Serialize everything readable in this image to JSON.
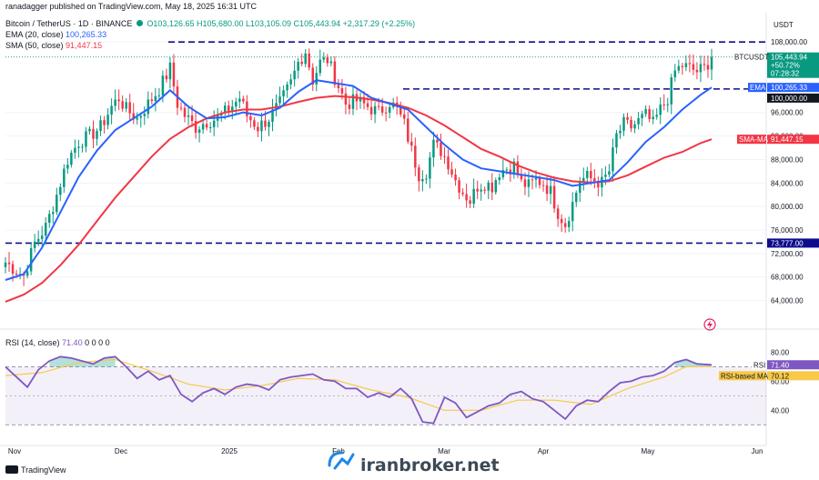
{
  "header": {
    "publisher_line": "ranadagger published on TradingView.com, May 18, 2025 16:31 UTC",
    "symbol_line": "Bitcoin / TetherUS · 1D · BINANCE",
    "ohlc": "O103,126.65 H105,680.00 L103,105.09 C105,443.94 +2,317.29 (+2.25%)",
    "ema_label": "EMA (20, close)",
    "ema_value": "100,265.33",
    "sma_label": "SMA (50, close)",
    "sma_value": "91,447.15",
    "currency": "USDT"
  },
  "colors": {
    "up": "#089981",
    "down": "#f23645",
    "ema": "#2962ff",
    "sma": "#f23645",
    "rsi": "#7e57c2",
    "rsi_ma": "#f7c948",
    "dashed": "#0d0d8c"
  },
  "price_tags": {
    "btc_symbol": "BTCUSDT",
    "btc_price": "105,443.94",
    "btc_change": "+50.72%",
    "btc_countdown": "07:28:32",
    "ema_name": "EMA",
    "ema_price": "100,265.33",
    "sma_name": "SMA-MA",
    "sma_price": "91,447.15",
    "level_100k": "100,000.00",
    "level_73k": "73,777.00"
  },
  "rsi_panel": {
    "label": "RSI (14, close)",
    "value": "71.40",
    "tail": "0 0 0 0",
    "rsi_tag": "RSI",
    "rsi_tag_value": "71.40",
    "ma_tag": "RSI-based MA",
    "ma_tag_value": "70.12"
  },
  "watermark": "iranbroker.net",
  "tv_brand": "TradingView",
  "chart_data": [
    {
      "type": "candlestick",
      "title": "Bitcoin / TetherUS · 1D · BINANCE",
      "x_labels": [
        "Nov",
        "Dec",
        "2025",
        "Feb",
        "Mar",
        "Apr",
        "May",
        "Jun"
      ],
      "y_ticks": [
        "108,000.00",
        "96,000.00",
        "92,000.00",
        "88,000.00",
        "84,000.00",
        "80,000.00",
        "76,000.00",
        "72,000.00",
        "68,000.00",
        "64,000.00"
      ],
      "ylim": [
        61000,
        110500
      ],
      "horizontal_levels": [
        108000,
        100000,
        73777
      ],
      "series": [
        {
          "name": "EMA (20, close)",
          "last": 100265.33
        },
        {
          "name": "SMA (50, close)",
          "last": 91447.15
        }
      ],
      "close_path": [
        [
          0,
          70500
        ],
        [
          5,
          68200
        ],
        [
          8,
          73800
        ],
        [
          11,
          76500
        ],
        [
          14,
          82000
        ],
        [
          17,
          88000
        ],
        [
          20,
          91000
        ],
        [
          23,
          92000
        ],
        [
          26,
          93500
        ],
        [
          29,
          97000
        ],
        [
          31,
          98500
        ],
        [
          33,
          96500
        ],
        [
          36,
          95000
        ],
        [
          39,
          97500
        ],
        [
          42,
          100000
        ],
        [
          45,
          103500
        ],
        [
          47,
          97500
        ],
        [
          49,
          95500
        ],
        [
          52,
          93500
        ],
        [
          55,
          94500
        ],
        [
          58,
          95000
        ],
        [
          61,
          96500
        ],
        [
          64,
          98500
        ],
        [
          66,
          95500
        ],
        [
          69,
          93500
        ],
        [
          72,
          95000
        ],
        [
          75,
          97500
        ],
        [
          78,
          101000
        ],
        [
          80,
          104500
        ],
        [
          82,
          106500
        ],
        [
          84,
          101500
        ],
        [
          86,
          104500
        ],
        [
          88,
          105000
        ],
        [
          90,
          102000
        ],
        [
          93,
          97500
        ],
        [
          96,
          98000
        ],
        [
          99,
          97000
        ],
        [
          102,
          96000
        ],
        [
          105,
          97800
        ],
        [
          107,
          96500
        ],
        [
          109,
          94000
        ],
        [
          111,
          89500
        ],
        [
          113,
          85500
        ],
        [
          115,
          86000
        ],
        [
          117,
          90500
        ],
        [
          119,
          89500
        ],
        [
          121,
          87500
        ],
        [
          123,
          84500
        ],
        [
          125,
          82500
        ],
        [
          127,
          81000
        ],
        [
          129,
          83500
        ],
        [
          131,
          84000
        ],
        [
          133,
          83500
        ],
        [
          135,
          86000
        ],
        [
          137,
          86500
        ],
        [
          139,
          87000
        ],
        [
          141,
          84000
        ],
        [
          143,
          83500
        ],
        [
          145,
          84500
        ],
        [
          147,
          84000
        ],
        [
          149,
          82500
        ],
        [
          151,
          79000
        ],
        [
          153,
          77000
        ],
        [
          155,
          80500
        ],
        [
          157,
          84500
        ],
        [
          159,
          85000
        ],
        [
          161,
          84500
        ],
        [
          163,
          84000
        ],
        [
          165,
          86000
        ],
        [
          167,
          92000
        ],
        [
          169,
          94000
        ],
        [
          171,
          93500
        ],
        [
          173,
          94500
        ],
        [
          175,
          95500
        ],
        [
          177,
          94000
        ],
        [
          179,
          96500
        ],
        [
          181,
          98500
        ],
        [
          183,
          103000
        ],
        [
          185,
          104000
        ],
        [
          187,
          103500
        ],
        [
          189,
          103000
        ],
        [
          191,
          103500
        ],
        [
          193,
          105444
        ]
      ],
      "ema_path": [
        [
          0,
          67500
        ],
        [
          5,
          68500
        ],
        [
          10,
          73000
        ],
        [
          15,
          79000
        ],
        [
          20,
          85000
        ],
        [
          25,
          89500
        ],
        [
          30,
          93000
        ],
        [
          35,
          95000
        ],
        [
          40,
          97000
        ],
        [
          45,
          99800
        ],
        [
          50,
          97000
        ],
        [
          55,
          95000
        ],
        [
          60,
          95200
        ],
        [
          65,
          96000
        ],
        [
          70,
          95500
        ],
        [
          75,
          96800
        ],
        [
          80,
          99500
        ],
        [
          85,
          101500
        ],
        [
          90,
          101000
        ],
        [
          95,
          100500
        ],
        [
          100,
          98500
        ],
        [
          105,
          97500
        ],
        [
          110,
          96500
        ],
        [
          115,
          93500
        ],
        [
          120,
          90500
        ],
        [
          125,
          88000
        ],
        [
          130,
          86500
        ],
        [
          135,
          86000
        ],
        [
          140,
          85500
        ],
        [
          145,
          85000
        ],
        [
          150,
          84500
        ],
        [
          155,
          83500
        ],
        [
          160,
          84000
        ],
        [
          165,
          84500
        ],
        [
          170,
          87500
        ],
        [
          175,
          91000
        ],
        [
          180,
          93500
        ],
        [
          185,
          96500
        ],
        [
          190,
          99000
        ],
        [
          193,
          100265
        ]
      ],
      "sma_path": [
        [
          0,
          63800
        ],
        [
          5,
          65000
        ],
        [
          10,
          67000
        ],
        [
          15,
          70000
        ],
        [
          20,
          73500
        ],
        [
          25,
          77500
        ],
        [
          30,
          81500
        ],
        [
          35,
          85000
        ],
        [
          40,
          88500
        ],
        [
          45,
          91500
        ],
        [
          50,
          93500
        ],
        [
          55,
          95000
        ],
        [
          60,
          96000
        ],
        [
          65,
          96500
        ],
        [
          70,
          96500
        ],
        [
          75,
          97000
        ],
        [
          80,
          97800
        ],
        [
          85,
          98500
        ],
        [
          90,
          98800
        ],
        [
          95,
          98600
        ],
        [
          100,
          98200
        ],
        [
          105,
          97600
        ],
        [
          110,
          96800
        ],
        [
          115,
          95500
        ],
        [
          120,
          93800
        ],
        [
          125,
          91800
        ],
        [
          130,
          89800
        ],
        [
          135,
          88500
        ],
        [
          140,
          87000
        ],
        [
          145,
          85800
        ],
        [
          150,
          84900
        ],
        [
          155,
          84300
        ],
        [
          160,
          84100
        ],
        [
          165,
          84300
        ],
        [
          170,
          85300
        ],
        [
          175,
          86800
        ],
        [
          180,
          88300
        ],
        [
          185,
          89300
        ],
        [
          190,
          90800
        ],
        [
          193,
          91447
        ]
      ]
    },
    {
      "type": "line",
      "title": "RSI (14, close)",
      "y_ticks": [
        "80.00",
        "60.00",
        "40.00"
      ],
      "ylim": [
        22,
        86
      ],
      "bands": [
        70,
        30
      ],
      "series": [
        {
          "name": "RSI (14, close)",
          "last": 71.4,
          "values": [
            [
              0,
              70
            ],
            [
              3,
              63
            ],
            [
              6,
              56
            ],
            [
              9,
              68
            ],
            [
              12,
              74
            ],
            [
              15,
              77
            ],
            [
              18,
              76
            ],
            [
              21,
              74
            ],
            [
              24,
              72
            ],
            [
              27,
              76
            ],
            [
              30,
              77
            ],
            [
              33,
              70
            ],
            [
              36,
              62
            ],
            [
              39,
              67
            ],
            [
              42,
              61
            ],
            [
              45,
              64
            ],
            [
              48,
              51
            ],
            [
              51,
              46
            ],
            [
              54,
              52
            ],
            [
              57,
              55
            ],
            [
              60,
              51
            ],
            [
              63,
              56
            ],
            [
              66,
              58
            ],
            [
              69,
              57
            ],
            [
              72,
              54
            ],
            [
              75,
              61
            ],
            [
              78,
              63
            ],
            [
              81,
              64
            ],
            [
              84,
              65
            ],
            [
              87,
              61
            ],
            [
              90,
              60
            ],
            [
              93,
              55
            ],
            [
              96,
              55
            ],
            [
              99,
              49
            ],
            [
              102,
              52
            ],
            [
              105,
              49
            ],
            [
              108,
              55
            ],
            [
              111,
              48
            ],
            [
              114,
              32
            ],
            [
              117,
              31
            ],
            [
              120,
              49
            ],
            [
              123,
              45
            ],
            [
              126,
              35
            ],
            [
              129,
              39
            ],
            [
              132,
              43
            ],
            [
              135,
              45
            ],
            [
              138,
              51
            ],
            [
              141,
              53
            ],
            [
              144,
              48
            ],
            [
              147,
              46
            ],
            [
              150,
              40
            ],
            [
              153,
              34
            ],
            [
              156,
              43
            ],
            [
              159,
              47
            ],
            [
              162,
              46
            ],
            [
              165,
              53
            ],
            [
              168,
              59
            ],
            [
              171,
              60
            ],
            [
              174,
              63
            ],
            [
              177,
              64
            ],
            [
              180,
              67
            ],
            [
              183,
              73
            ],
            [
              186,
              75
            ],
            [
              189,
              72
            ],
            [
              193,
              71.4
            ]
          ]
        },
        {
          "name": "RSI-based MA",
          "last": 70.12,
          "values": [
            [
              0,
              64
            ],
            [
              10,
              66
            ],
            [
              20,
              73
            ],
            [
              30,
              75
            ],
            [
              40,
              67
            ],
            [
              50,
              58
            ],
            [
              60,
              54
            ],
            [
              70,
              57
            ],
            [
              80,
              62
            ],
            [
              90,
              61
            ],
            [
              100,
              54
            ],
            [
              110,
              49
            ],
            [
              120,
              40
            ],
            [
              130,
              40
            ],
            [
              140,
              47
            ],
            [
              150,
              47
            ],
            [
              160,
              44
            ],
            [
              170,
              55
            ],
            [
              180,
              63
            ],
            [
              186,
              70
            ],
            [
              193,
              70.12
            ]
          ]
        }
      ]
    }
  ]
}
